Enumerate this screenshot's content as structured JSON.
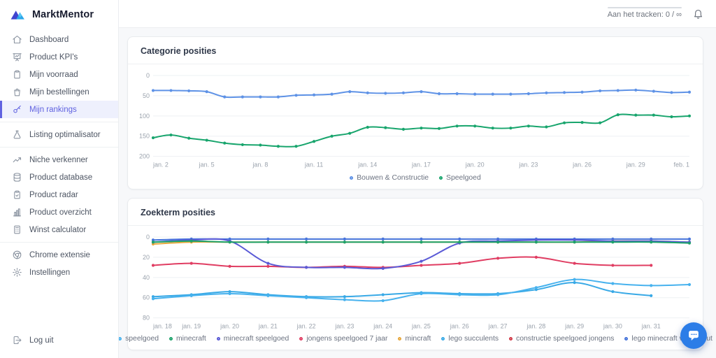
{
  "brand": {
    "name": "MarktMentor"
  },
  "topbar": {
    "tracking_label": "Aan het tracken: 0 / ∞"
  },
  "sidebar": {
    "items": [
      {
        "label": "Dashboard",
        "icon": "home-icon"
      },
      {
        "label": "Product KPI's",
        "icon": "presentation-chart-icon"
      },
      {
        "label": "Mijn voorraad",
        "icon": "clipboard-icon"
      },
      {
        "label": "Mijn bestellingen",
        "icon": "shopping-bag-icon"
      },
      {
        "label": "Mijn rankings",
        "icon": "key-icon",
        "active": true,
        "divider_after": true
      },
      {
        "label": "Listing optimalisator",
        "icon": "flask-icon",
        "divider_after": true
      },
      {
        "label": "Niche verkenner",
        "icon": "trending-up-icon"
      },
      {
        "label": "Product database",
        "icon": "database-icon"
      },
      {
        "label": "Product radar",
        "icon": "clipboard-check-icon"
      },
      {
        "label": "Product overzicht",
        "icon": "bar-chart-icon"
      },
      {
        "label": "Winst calculator",
        "icon": "calculator-icon",
        "divider_after": true
      },
      {
        "label": "Chrome extensie",
        "icon": "chrome-icon"
      },
      {
        "label": "Instellingen",
        "icon": "gear-icon"
      }
    ],
    "logout_label": "Log uit"
  },
  "chart_data": [
    {
      "type": "line",
      "title": "Categorie posities",
      "x_labels": [
        "jan. 2",
        "",
        "",
        "jan. 5",
        "",
        "",
        "jan. 8",
        "",
        "",
        "jan. 11",
        "",
        "",
        "jan. 14",
        "",
        "",
        "jan. 17",
        "",
        "",
        "jan. 20",
        "",
        "",
        "jan. 23",
        "",
        "",
        "jan. 26",
        "",
        "",
        "jan. 29",
        "",
        "",
        "feb. 1"
      ],
      "y_ticks": [
        0,
        50,
        100,
        150,
        200
      ],
      "ylim": [
        0,
        200
      ],
      "y_axis_inverted": true,
      "grid": true,
      "legend_position": "bottom-center",
      "series": [
        {
          "name": "Bouwen & Constructie",
          "color": "#5e92e6",
          "values": [
            37,
            37,
            38,
            40,
            53,
            53,
            53,
            53,
            49,
            48,
            46,
            40,
            43,
            44,
            43,
            40,
            45,
            45,
            46,
            46,
            46,
            45,
            43,
            42,
            41,
            38,
            37,
            36,
            39,
            42,
            41
          ]
        },
        {
          "name": "Speelgoed",
          "color": "#18a56d",
          "values": [
            154,
            147,
            155,
            160,
            167,
            171,
            172,
            175,
            175,
            163,
            150,
            143,
            128,
            129,
            133,
            130,
            131,
            125,
            125,
            130,
            130,
            125,
            127,
            117,
            116,
            117,
            97,
            98,
            98,
            102,
            100
          ]
        }
      ]
    },
    {
      "type": "line",
      "title": "Zoekterm posities",
      "x_labels": [
        "jan. 18",
        "jan. 19",
        "jan. 20",
        "jan. 21",
        "jan. 22",
        "jan. 23",
        "jan. 24",
        "jan. 25",
        "jan. 26",
        "jan. 27",
        "jan. 28",
        "jan. 29",
        "jan. 30",
        "jan. 31",
        ""
      ],
      "y_ticks": [
        0,
        20,
        40,
        60,
        80
      ],
      "ylim": [
        0,
        80
      ],
      "y_axis_inverted": true,
      "grid": true,
      "legend_position": "bottom-center",
      "series": [
        {
          "name": "speelgoed",
          "color": "#47b2ee",
          "values": [
            61,
            58,
            56,
            58,
            60,
            62,
            63,
            56,
            57,
            57,
            50,
            42,
            46,
            48,
            47
          ]
        },
        {
          "name": "minecraft",
          "color": "#1ca26a",
          "values": [
            5,
            4,
            5,
            5,
            5,
            5,
            5,
            5,
            5,
            5,
            5,
            5,
            5,
            5,
            6
          ]
        },
        {
          "name": "minecraft speelgoed",
          "color": "#5a5ad6",
          "values": [
            5,
            3,
            4,
            26,
            30,
            30,
            31,
            24,
            6,
            4,
            3,
            3,
            4,
            4,
            5
          ]
        },
        {
          "name": "jongens speelgoed 7 jaar",
          "color": "#e03d62",
          "values": [
            28,
            26,
            29,
            29,
            30,
            29,
            30,
            28,
            26,
            21,
            20,
            26,
            28,
            28,
            null
          ]
        },
        {
          "name": "mincraft",
          "color": "#e7a83e",
          "values": [
            7,
            5,
            5,
            5,
            5,
            5,
            5,
            5,
            5,
            5,
            5,
            5,
            4,
            4,
            5
          ]
        },
        {
          "name": "lego succulents",
          "color": "#38a9e6",
          "values": [
            59,
            57,
            54,
            57,
            59,
            59,
            57,
            55,
            56,
            56,
            52,
            45,
            54,
            58,
            null
          ]
        },
        {
          "name": "constructie speelgoed jongens",
          "color": "#d13a48",
          "values": [
            null,
            null,
            null,
            null,
            null,
            null,
            null,
            null,
            null,
            null,
            null,
            null,
            null,
            null,
            null
          ]
        },
        {
          "name": "lego minecraft vossenhut",
          "color": "#4573da",
          "values": [
            3,
            2,
            2,
            2,
            2,
            2,
            2,
            2,
            2,
            2,
            2,
            2,
            2,
            2,
            2
          ]
        }
      ]
    }
  ]
}
